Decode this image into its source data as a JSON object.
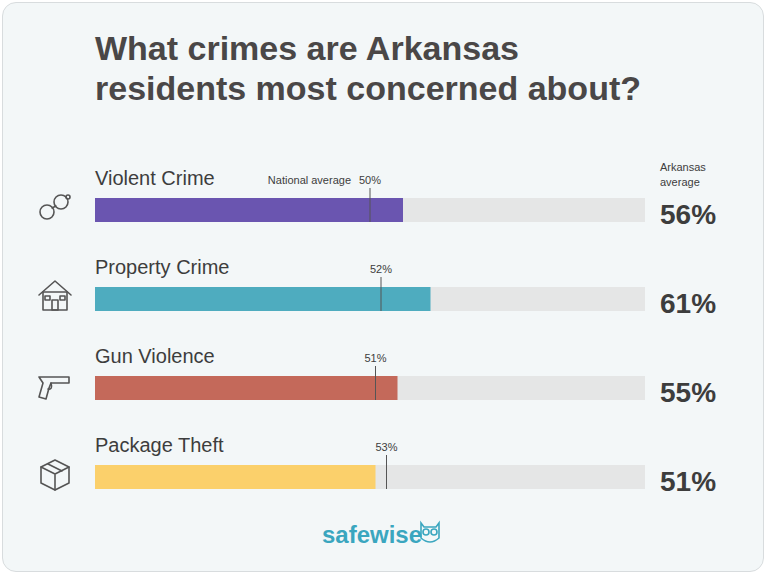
{
  "chart_data": {
    "type": "bar",
    "title": "What crimes are Arkansas residents most concerned about?",
    "orientation": "horizontal",
    "categories": [
      "Violent Crime",
      "Property Crime",
      "Gun Violence",
      "Package Theft"
    ],
    "series": [
      {
        "name": "Arkansas average",
        "type": "bar",
        "colors": [
          "#6a55b0",
          "#4eacbf",
          "#c4695a",
          "#fbd06b"
        ],
        "values": [
          56,
          61,
          55,
          51
        ],
        "value_labels": [
          "56%",
          "61%",
          "55%",
          "51%"
        ]
      },
      {
        "name": "National average",
        "type": "line",
        "marker": "line",
        "color": "#555555",
        "values": [
          50,
          52,
          51,
          53
        ],
        "value_labels": [
          "50%",
          "52%",
          "51%",
          "53%"
        ]
      }
    ],
    "xlim": [
      0,
      100
    ],
    "grid": false,
    "tick_labels": false,
    "data_labels": true,
    "footer": "safewise"
  }
}
